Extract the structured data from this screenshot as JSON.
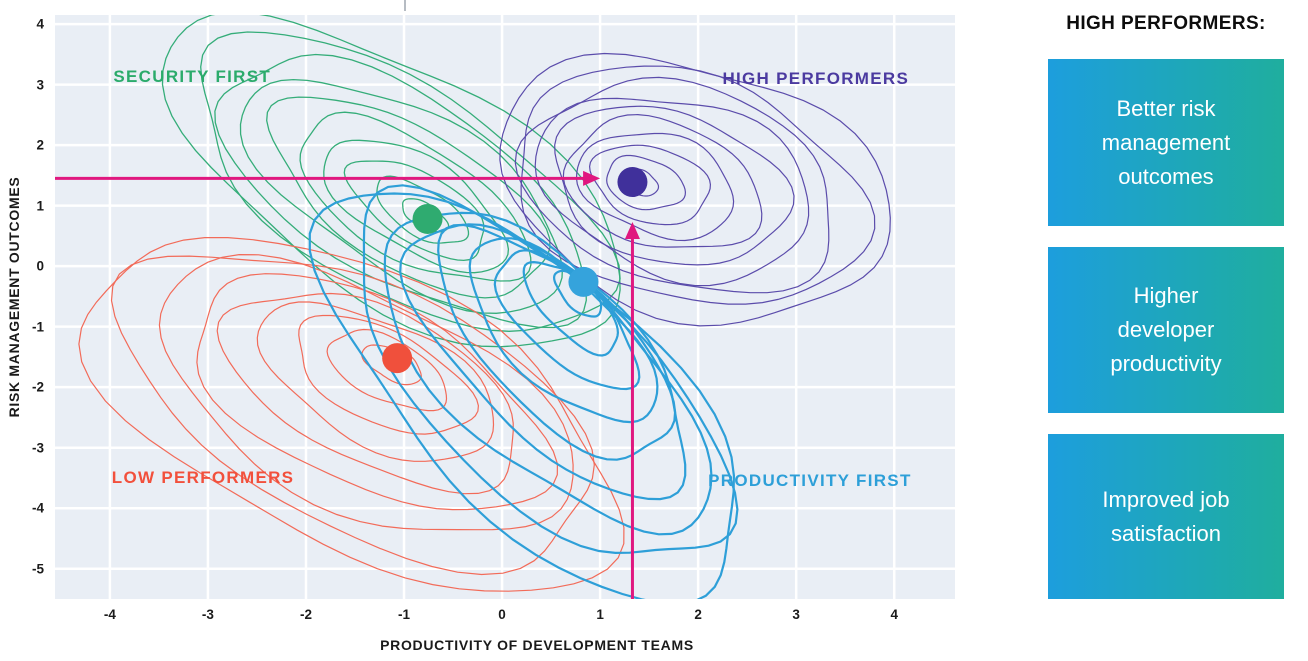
{
  "chart_data": {
    "type": "contour-scatter",
    "title": "",
    "xlabel": "PRODUCTIVITY OF DEVELOPMENT TEAMS",
    "ylabel": "RISK MANAGEMENT OUTCOMES",
    "xlim": [
      -4.56,
      4.62
    ],
    "ylim": [
      -5.5,
      4.15
    ],
    "x_ticks": [
      -4,
      -3,
      -2,
      -1,
      0,
      1,
      2,
      3,
      4
    ],
    "y_ticks": [
      4,
      3,
      2,
      1,
      0,
      -1,
      -2,
      -3,
      -4,
      -5
    ],
    "grid": true,
    "plot_bg": "#e9eef5",
    "grid_color": "#ffffff",
    "clusters": [
      {
        "key": "security-first",
        "name": "SECURITY FIRST",
        "label_color": "#2bab6b",
        "label_pos": [
          -3.16,
          3.12
        ],
        "contour_color": "#35ad79",
        "stroke_width": 1.3,
        "levels": 10,
        "dot": [
          -0.76,
          0.78
        ],
        "dot_color": "#2fab70",
        "outer_center": [
          -1.08,
          1.38
        ],
        "rx": 258,
        "ry": 115,
        "angle": 31
      },
      {
        "key": "high-performers",
        "name": "HIGH PERFORMERS",
        "label_color": "#4b3aa0",
        "label_pos": [
          3.2,
          3.1
        ],
        "contour_color": "#5b4cab",
        "stroke_width": 1.2,
        "levels": 10,
        "dot": [
          1.33,
          1.39
        ],
        "dot_color": "#40309b",
        "outer_center": [
          1.95,
          1.28
        ],
        "rx": 200,
        "ry": 125,
        "angle": 16
      },
      {
        "key": "low-performers",
        "name": "LOW PERFORMERS",
        "label_color": "#f2503c",
        "label_pos": [
          -3.05,
          -3.5
        ],
        "contour_color": "#f26b59",
        "stroke_width": 1.2,
        "levels": 9,
        "dot": [
          -1.07,
          -1.52
        ],
        "dot_color": "#f0503c",
        "outer_center": [
          -1.5,
          -2.42
        ],
        "rx": 288,
        "ry": 138,
        "angle": 26
      },
      {
        "key": "productivity-first",
        "name": "PRODUCTIVITY FIRST",
        "label_color": "#2d9fd8",
        "label_pos": [
          3.14,
          -3.55
        ],
        "contour_color": "#2e9fd8",
        "stroke_width": 2.2,
        "levels": 9,
        "dot": [
          0.83,
          -0.26
        ],
        "dot_color": "#35a3dc",
        "outer_center": [
          0.32,
          -2.12
        ],
        "rx": 268,
        "ry": 120,
        "angle": 44
      }
    ],
    "annotations": {
      "horizontal_arrow": {
        "y": 1.45,
        "x_from": -4.56,
        "x_to": 1.0,
        "color": "#e0187f"
      },
      "vertical_arrow": {
        "x": 1.33,
        "y_from": -5.5,
        "y_to": 0.73,
        "color": "#e0187f"
      }
    }
  },
  "sidebar": {
    "heading": "HIGH PERFORMERS:",
    "gradient": [
      "#1d9edd",
      "#1fae9e"
    ],
    "cards": [
      {
        "text": "Better risk management outcomes"
      },
      {
        "text": "Higher developer productivity"
      },
      {
        "text": "Improved job satisfaction"
      }
    ]
  }
}
